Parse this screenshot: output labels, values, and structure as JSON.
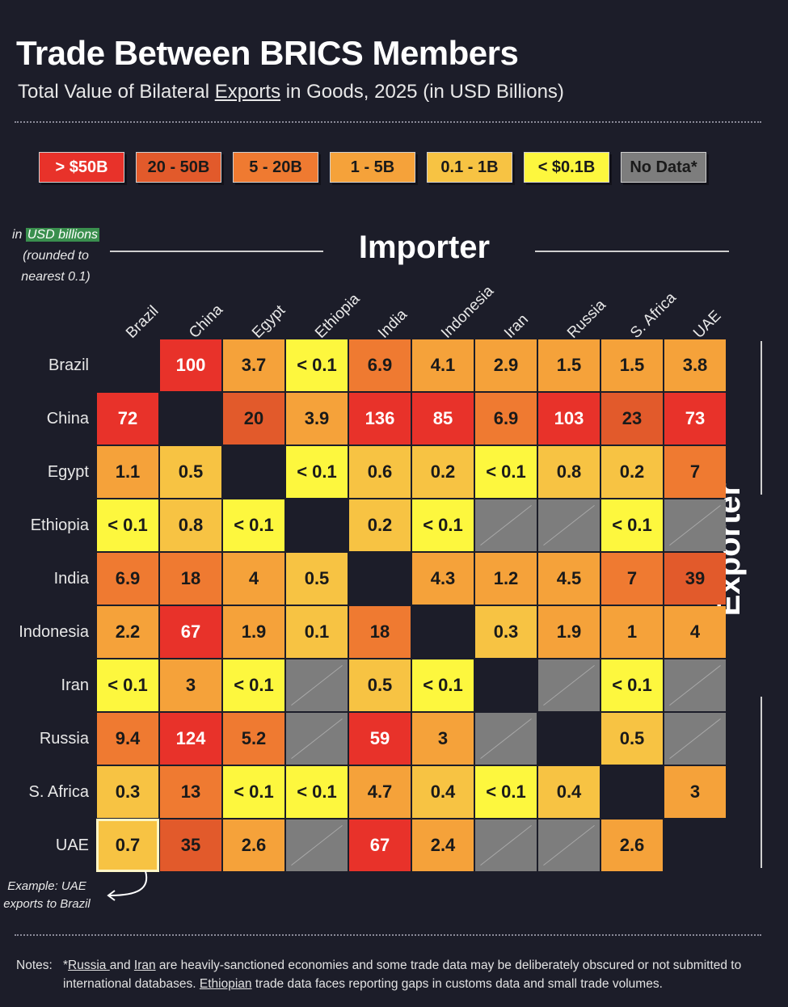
{
  "title": "Trade Between BRICS Members",
  "subtitle": {
    "pre": "Total Value of Bilateral ",
    "underlined": "Exports",
    "post": " in Goods, 2025 (in USD Billions)"
  },
  "legend": [
    {
      "label": "> $50B",
      "color": "#e8322a",
      "text_color": "#ffffff"
    },
    {
      "label": "20 - 50B",
      "color": "#e25a2b",
      "text_color": "#1a1a1a"
    },
    {
      "label": "5 - 20B",
      "color": "#ef7a31",
      "text_color": "#1a1a1a"
    },
    {
      "label": "1 - 5B",
      "color": "#f5a23a",
      "text_color": "#1a1a1a"
    },
    {
      "label": "0.1 - 1B",
      "color": "#f7c343",
      "text_color": "#1a1a1a"
    },
    {
      "label": "< $0.1B",
      "color": "#fdf73e",
      "text_color": "#1a1a1a"
    },
    {
      "label": "No Data*",
      "color": "#7d7d7d",
      "text_color": "#1a1a1a"
    }
  ],
  "units_note": {
    "pre": "in ",
    "highlight": "USD billions",
    "line2": "(rounded to",
    "line3": "nearest 0.1)"
  },
  "importer_label": "Importer",
  "exporter_label": "Exporter",
  "example_note": {
    "line1": "Example: UAE",
    "line2": "exports to Brazil"
  },
  "notes": {
    "label": "Notes:",
    "p1": "*",
    "russia": "Russia ",
    "and": "and ",
    "iran": "Iran",
    "p2": " are heavily-sanctioned economies and some trade data may be deliberately obscured or not submitted to international databases. ",
    "ethiopian": "Ethiopian",
    "p3": " trade data faces reporting gaps in customs data and small trade volumes."
  },
  "chart_data": {
    "type": "heatmap",
    "x_title": "Importer",
    "y_title": "Exporter",
    "columns": [
      "Brazil",
      "China",
      "Egypt",
      "Ethiopia",
      "India",
      "Indonesia",
      "Iran",
      "Russia",
      "S. Africa",
      "UAE"
    ],
    "rows": [
      "Brazil",
      "China",
      "Egypt",
      "Ethiopia",
      "India",
      "Indonesia",
      "Iran",
      "Russia",
      "S. Africa",
      "UAE"
    ],
    "cells": [
      [
        "",
        "100",
        "3.7",
        "< 0.1",
        "6.9",
        "4.1",
        "2.9",
        "1.5",
        "1.5",
        "3.8"
      ],
      [
        "72",
        "",
        "20",
        "3.9",
        "136",
        "85",
        "6.9",
        "103",
        "23",
        "73"
      ],
      [
        "1.1",
        "0.5",
        "",
        "< 0.1",
        "0.6",
        "0.2",
        "< 0.1",
        "0.8",
        "0.2",
        "7"
      ],
      [
        "< 0.1",
        "0.8",
        "< 0.1",
        "",
        "0.2",
        "< 0.1",
        "N/A",
        "N/A",
        "< 0.1",
        "N/A"
      ],
      [
        "6.9",
        "18",
        "4",
        "0.5",
        "",
        "4.3",
        "1.2",
        "4.5",
        "7",
        "39"
      ],
      [
        "2.2",
        "67",
        "1.9",
        "0.1",
        "18",
        "",
        "0.3",
        "1.9",
        "1",
        "4"
      ],
      [
        "< 0.1",
        "3",
        "< 0.1",
        "N/A",
        "0.5",
        "< 0.1",
        "",
        "N/A",
        "< 0.1",
        "N/A"
      ],
      [
        "9.4",
        "124",
        "5.2",
        "N/A",
        "59",
        "3",
        "N/A",
        "",
        "0.5",
        "N/A"
      ],
      [
        "0.3",
        "13",
        "< 0.1",
        "< 0.1",
        "4.7",
        "0.4",
        "< 0.1",
        "0.4",
        "",
        "3"
      ],
      [
        "0.7",
        "35",
        "2.6",
        "N/A",
        "67",
        "2.4",
        "N/A",
        "N/A",
        "2.6",
        ""
      ]
    ],
    "highlighted_cell": {
      "row": "UAE",
      "column": "Brazil"
    },
    "legend_placement": "top"
  }
}
